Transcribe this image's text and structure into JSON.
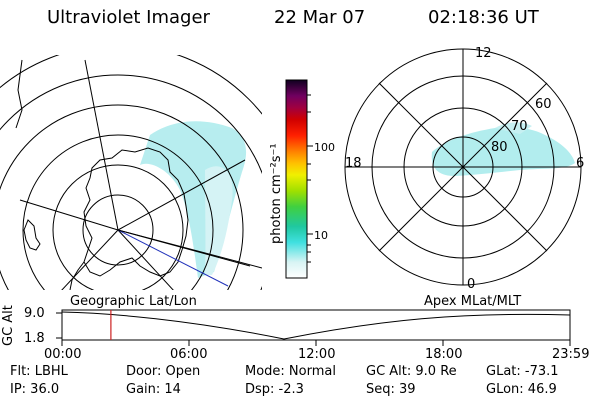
{
  "header": {
    "title": "Ultraviolet Imager",
    "date": "22 Mar 07",
    "time": "02:18:36 UT"
  },
  "colorbar": {
    "unit_label": "photon cm⁻²s⁻¹",
    "ticks": [
      "100",
      "10"
    ]
  },
  "polar_plot": {
    "mlt_labels": {
      "top": "12",
      "left": "18",
      "right": "6",
      "bottom": "0"
    },
    "lat_labels": [
      "60",
      "70",
      "80"
    ]
  },
  "orbit_panel": {
    "left_label": "Geographic Lat/Lon",
    "right_label": "Apex MLat/MLT",
    "ylabel": "GC Alt",
    "yticks": [
      "9.0",
      "1.8"
    ],
    "time_ticks": [
      "00:00",
      "06:00",
      "12:00",
      "18:00",
      "23:59"
    ],
    "marker_time_hours": 2.31
  },
  "info": {
    "flt": "Flt: LBHL",
    "ip": "IP: 36.0",
    "door": "Door: Open",
    "gain": "Gain: 14",
    "mode": "Mode: Normal",
    "dsp": "Dsp:    -2.3",
    "gc_alt": "GC Alt: 9.0 Re",
    "seq": "Seq: 39",
    "glat": "GLat: -73.1",
    "glon": "GLon:  46.9"
  },
  "colors": {
    "aurora": "#7fe0e0",
    "track_red": "#cc2222",
    "track_blue": "#2233bb"
  }
}
